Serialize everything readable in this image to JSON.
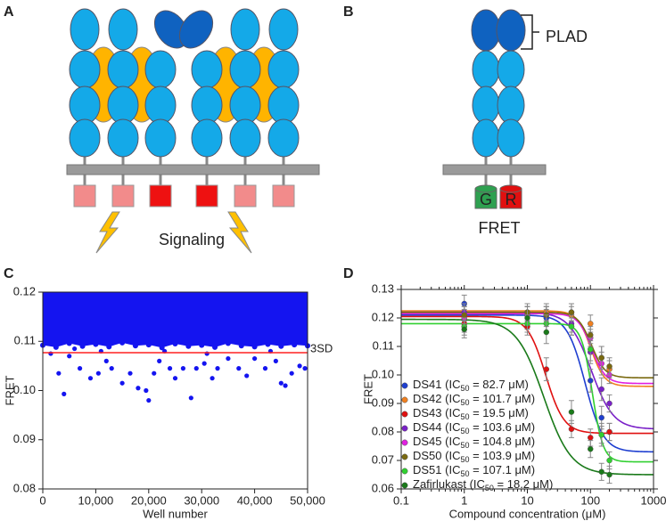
{
  "panel_labels": [
    "A",
    "B",
    "C",
    "D"
  ],
  "diagram_a": {
    "signal_label": "Signaling"
  },
  "diagram_b": {
    "domain_label": "PLAD",
    "donor": "G",
    "acceptor": "R",
    "fret_label": "FRET"
  },
  "chart_data": [
    {
      "type": "scatter",
      "xlabel": "Well number",
      "ylabel": "FRET",
      "color": "#1414f0",
      "xlim": [
        0,
        50000
      ],
      "ylim": [
        0.08,
        0.12
      ],
      "xticks": [
        0,
        {
          "value": 10000,
          "label": "10,000"
        },
        {
          "value": 20000,
          "label": "20,000"
        },
        {
          "value": 30000,
          "label": "30,000"
        },
        {
          "value": 40000,
          "label": "40,000"
        },
        {
          "value": 50000,
          "label": "50,000"
        }
      ],
      "yticks": [
        0.08,
        0.09,
        {
          "value": 0.1,
          "label": "0.10"
        },
        0.11,
        0.12
      ],
      "band": {
        "x": [
          0,
          2500,
          5000,
          7500,
          10000,
          12500,
          15000,
          17500,
          20000,
          22500,
          25000,
          27500,
          30000,
          32500,
          35000,
          37500,
          40000,
          42500,
          45000,
          47500,
          50000
        ],
        "low": [
          0.1092,
          0.1088,
          0.1096,
          0.109,
          0.1094,
          0.1089,
          0.1097,
          0.1091,
          0.1093,
          0.1087,
          0.1095,
          0.109,
          0.1092,
          0.1088,
          0.1096,
          0.1091,
          0.1089,
          0.1094,
          0.109,
          0.1093,
          0.1091
        ],
        "high": 0.12
      },
      "x": [
        4000,
        3000,
        5000,
        7000,
        9000,
        10500,
        12000,
        13000,
        15000,
        16500,
        18000,
        19500,
        20000,
        21000,
        22000,
        24000,
        25000,
        26500,
        28000,
        29000,
        30500,
        32000,
        33000,
        35000,
        37000,
        38500,
        40000,
        42000,
        44000,
        45000,
        45800,
        47000,
        48500,
        49500,
        1500,
        6000,
        11000,
        23000,
        31000,
        43000
      ],
      "values": [
        0.0993,
        0.1035,
        0.107,
        0.1045,
        0.1025,
        0.1035,
        0.106,
        0.1045,
        0.1015,
        0.1035,
        0.1005,
        0.1,
        0.098,
        0.1035,
        0.106,
        0.1045,
        0.1025,
        0.1045,
        0.0985,
        0.1045,
        0.1055,
        0.1025,
        0.1045,
        0.1065,
        0.1045,
        0.103,
        0.1065,
        0.1045,
        0.106,
        0.1015,
        0.101,
        0.1035,
        0.105,
        0.1045,
        0.1075,
        0.1085,
        0.108,
        0.108,
        0.1075,
        0.108
      ],
      "threshold": {
        "value": 0.1077,
        "label": "3SD",
        "color": "#ff2020"
      }
    },
    {
      "type": "dose_response",
      "xlabel": "Compound concentration (μM)",
      "ylabel": "FRET",
      "log_x": true,
      "xlim": [
        0.1,
        1000
      ],
      "ylim": [
        0.06,
        0.13
      ],
      "xticks": [
        0.1,
        1,
        10,
        100,
        1000
      ],
      "yticks": [
        0.06,
        0.07,
        0.08,
        0.09,
        {
          "value": 0.1,
          "label": "0.10"
        },
        0.11,
        0.12,
        0.13
      ],
      "x": [
        1,
        10,
        20,
        50,
        100,
        150,
        200
      ],
      "series": [
        {
          "legend": [
            "DS41 (IC",
            "50",
            " = 82.7 μM)"
          ],
          "color": "#1f3fd0",
          "values": [
            0.125,
            0.121,
            0.12,
            0.117,
            0.098,
            0.085,
            0.08
          ],
          "errors": [
            0.003,
            0.003,
            0.003,
            0.003,
            0.004,
            0.004,
            0.003
          ],
          "fit": {
            "top": 0.121,
            "bottom": 0.073,
            "ic50": 82.7,
            "hill": 3
          }
        },
        {
          "legend": [
            "DS42 (IC",
            "50",
            " = 101.7 μM)"
          ],
          "color": "#f08020",
          "values": [
            0.121,
            0.122,
            0.122,
            0.121,
            0.118,
            0.106,
            0.102
          ],
          "errors": [
            0.003,
            0.003,
            0.003,
            0.003,
            0.003,
            0.004,
            0.003
          ],
          "fit": {
            "top": 0.1225,
            "bottom": 0.096,
            "ic50": 101.7,
            "hill": 4
          }
        },
        {
          "legend": [
            "DS43 (IC",
            "50",
            " = 19.5 μM)"
          ],
          "color": "#e01010",
          "values": [
            0.118,
            0.117,
            0.102,
            0.081,
            0.078,
            0.079,
            0.08
          ],
          "errors": [
            0.003,
            0.003,
            0.004,
            0.003,
            0.003,
            0.003,
            0.003
          ],
          "fit": {
            "top": 0.1205,
            "bottom": 0.0795,
            "ic50": 19.5,
            "hill": 3
          }
        },
        {
          "legend": [
            "DS44 (IC",
            "50",
            " = 103.6 μM)"
          ],
          "color": "#7a20c8",
          "values": [
            0.122,
            0.121,
            0.121,
            0.118,
            0.108,
            0.095,
            0.09
          ],
          "errors": [
            0.003,
            0.003,
            0.003,
            0.003,
            0.004,
            0.004,
            0.003
          ],
          "fit": {
            "top": 0.122,
            "bottom": 0.081,
            "ic50": 103.6,
            "hill": 2.5
          }
        },
        {
          "legend": [
            "DS45 (IC",
            "50",
            " = 104.8 μM)"
          ],
          "color": "#e020e0",
          "values": [
            0.12,
            0.121,
            0.121,
            0.122,
            0.113,
            0.104,
            0.1
          ],
          "errors": [
            0.003,
            0.003,
            0.003,
            0.003,
            0.003,
            0.004,
            0.003
          ],
          "fit": {
            "top": 0.1215,
            "bottom": 0.097,
            "ic50": 104.8,
            "hill": 4
          }
        },
        {
          "legend": [
            "DS50 (IC",
            "50",
            " = 103.9 μM)"
          ],
          "color": "#7a6a10",
          "values": [
            0.121,
            0.122,
            0.121,
            0.122,
            0.114,
            0.106,
            0.103
          ],
          "errors": [
            0.003,
            0.003,
            0.003,
            0.003,
            0.003,
            0.004,
            0.003
          ],
          "fit": {
            "top": 0.122,
            "bottom": 0.099,
            "ic50": 103.9,
            "hill": 4
          }
        },
        {
          "legend": [
            "DS51 (IC",
            "50",
            " = 107.1 μM)"
          ],
          "color": "#30d030",
          "values": [
            0.117,
            0.118,
            0.118,
            0.117,
            0.109,
            0.079,
            0.07
          ],
          "errors": [
            0.003,
            0.003,
            0.003,
            0.003,
            0.004,
            0.004,
            0.003
          ],
          "fit": {
            "top": 0.118,
            "bottom": 0.0695,
            "ic50": 107.1,
            "hill": 5
          }
        },
        {
          "legend": [
            "Zafirlukast (IC",
            "50",
            " = 18.2 μM)"
          ],
          "color": "#1a7a1a",
          "values": [
            0.116,
            0.12,
            0.115,
            0.087,
            0.074,
            0.066,
            0.065
          ],
          "errors": [
            0.003,
            0.004,
            0.004,
            0.004,
            0.003,
            0.003,
            0.003
          ],
          "fit": {
            "top": 0.1195,
            "bottom": 0.065,
            "ic50": 18.2,
            "hill": 2
          }
        }
      ]
    }
  ]
}
